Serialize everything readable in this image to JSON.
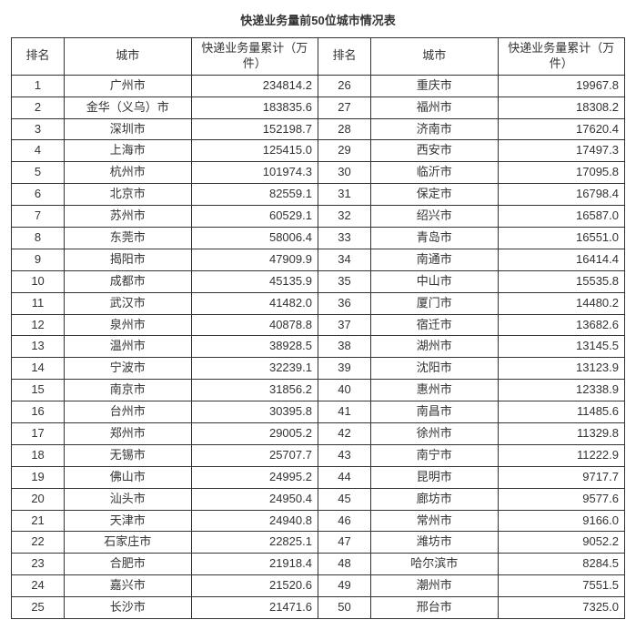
{
  "title": "快递业务量前50位城市情况表",
  "headers": {
    "rank": "排名",
    "city": "城市",
    "value": "快递业务量累计（万件）"
  },
  "rows": [
    {
      "rank": 1,
      "city": "广州市",
      "value": "234814.2",
      "rank2": 26,
      "city2": "重庆市",
      "value2": "19967.8"
    },
    {
      "rank": 2,
      "city": "金华（义乌）市",
      "value": "183835.6",
      "rank2": 27,
      "city2": "福州市",
      "value2": "18308.2"
    },
    {
      "rank": 3,
      "city": "深圳市",
      "value": "152198.7",
      "rank2": 28,
      "city2": "济南市",
      "value2": "17620.4"
    },
    {
      "rank": 4,
      "city": "上海市",
      "value": "125415.0",
      "rank2": 29,
      "city2": "西安市",
      "value2": "17497.3"
    },
    {
      "rank": 5,
      "city": "杭州市",
      "value": "101974.3",
      "rank2": 30,
      "city2": "临沂市",
      "value2": "17095.8"
    },
    {
      "rank": 6,
      "city": "北京市",
      "value": "82559.1",
      "rank2": 31,
      "city2": "保定市",
      "value2": "16798.4"
    },
    {
      "rank": 7,
      "city": "苏州市",
      "value": "60529.1",
      "rank2": 32,
      "city2": "绍兴市",
      "value2": "16587.0"
    },
    {
      "rank": 8,
      "city": "东莞市",
      "value": "58006.4",
      "rank2": 33,
      "city2": "青岛市",
      "value2": "16551.0"
    },
    {
      "rank": 9,
      "city": "揭阳市",
      "value": "47909.9",
      "rank2": 34,
      "city2": "南通市",
      "value2": "16414.4"
    },
    {
      "rank": 10,
      "city": "成都市",
      "value": "45135.9",
      "rank2": 35,
      "city2": "中山市",
      "value2": "15535.8"
    },
    {
      "rank": 11,
      "city": "武汉市",
      "value": "41482.0",
      "rank2": 36,
      "city2": "厦门市",
      "value2": "14480.2"
    },
    {
      "rank": 12,
      "city": "泉州市",
      "value": "40878.8",
      "rank2": 37,
      "city2": "宿迁市",
      "value2": "13682.6"
    },
    {
      "rank": 13,
      "city": "温州市",
      "value": "38928.5",
      "rank2": 38,
      "city2": "湖州市",
      "value2": "13145.5"
    },
    {
      "rank": 14,
      "city": "宁波市",
      "value": "32239.1",
      "rank2": 39,
      "city2": "沈阳市",
      "value2": "13123.9"
    },
    {
      "rank": 15,
      "city": "南京市",
      "value": "31856.2",
      "rank2": 40,
      "city2": "惠州市",
      "value2": "12338.9"
    },
    {
      "rank": 16,
      "city": "台州市",
      "value": "30395.8",
      "rank2": 41,
      "city2": "南昌市",
      "value2": "11485.6"
    },
    {
      "rank": 17,
      "city": "郑州市",
      "value": "29005.2",
      "rank2": 42,
      "city2": "徐州市",
      "value2": "11329.8"
    },
    {
      "rank": 18,
      "city": "无锡市",
      "value": "25707.7",
      "rank2": 43,
      "city2": "南宁市",
      "value2": "11222.9"
    },
    {
      "rank": 19,
      "city": "佛山市",
      "value": "24995.2",
      "rank2": 44,
      "city2": "昆明市",
      "value2": "9717.7"
    },
    {
      "rank": 20,
      "city": "汕头市",
      "value": "24950.4",
      "rank2": 45,
      "city2": "廊坊市",
      "value2": "9577.6"
    },
    {
      "rank": 21,
      "city": "天津市",
      "value": "24940.8",
      "rank2": 46,
      "city2": "常州市",
      "value2": "9166.0"
    },
    {
      "rank": 22,
      "city": "石家庄市",
      "value": "22825.1",
      "rank2": 47,
      "city2": "潍坊市",
      "value2": "9052.2"
    },
    {
      "rank": 23,
      "city": "合肥市",
      "value": "21918.4",
      "rank2": 48,
      "city2": "哈尔滨市",
      "value2": "8284.5"
    },
    {
      "rank": 24,
      "city": "嘉兴市",
      "value": "21520.6",
      "rank2": 49,
      "city2": "潮州市",
      "value2": "7551.5"
    },
    {
      "rank": 25,
      "city": "长沙市",
      "value": "21471.6",
      "rank2": 50,
      "city2": "邢台市",
      "value2": "7325.0"
    }
  ]
}
